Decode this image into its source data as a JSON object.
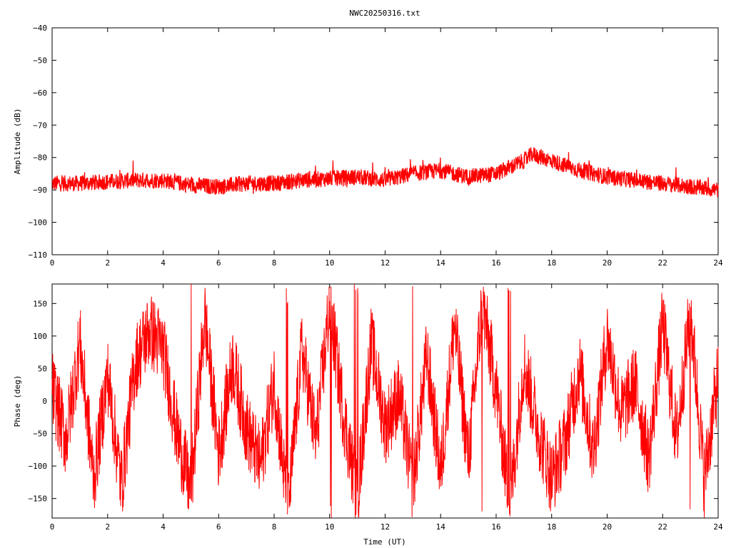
{
  "title": "NWC20250316.txt",
  "colors": {
    "trace": "#ff0000",
    "axis": "#000000",
    "background": "#ffffff"
  },
  "chart_data": [
    {
      "type": "line",
      "title": "",
      "xlabel": "",
      "ylabel": "Amplitude (dB)",
      "xlim": [
        0,
        24
      ],
      "ylim": [
        -110,
        -40
      ],
      "xticks": [
        "0",
        "2",
        "4",
        "6",
        "8",
        "10",
        "12",
        "14",
        "16",
        "18",
        "20",
        "22",
        "24"
      ],
      "yticks": [
        "−40",
        "−50",
        "−60",
        "−70",
        "−80",
        "−90",
        "−100",
        "−110"
      ],
      "grid": false,
      "series": [
        {
          "x": [
            0,
            1,
            2,
            3,
            4,
            5,
            6,
            7,
            8,
            9,
            10,
            11,
            12,
            13,
            14,
            15,
            16,
            17,
            17.3,
            18,
            19,
            20,
            21,
            22,
            23,
            24
          ],
          "y": [
            -88,
            -88,
            -87.5,
            -87,
            -87,
            -88.5,
            -89,
            -88,
            -88,
            -87,
            -86.5,
            -86,
            -87,
            -85,
            -84,
            -86,
            -85,
            -81,
            -79,
            -81,
            -84,
            -86,
            -87,
            -88,
            -89,
            -90
          ],
          "spread_db": 2.5
        }
      ]
    },
    {
      "type": "line",
      "title": "",
      "xlabel": "Time (UT)",
      "ylabel": "Phase (deg)",
      "xlim": [
        0,
        24
      ],
      "ylim": [
        -180,
        180
      ],
      "xticks": [
        "0",
        "2",
        "4",
        "6",
        "8",
        "10",
        "12",
        "14",
        "16",
        "18",
        "20",
        "22",
        "24"
      ],
      "yticks": [
        "150",
        "100",
        "50",
        "0",
        "−50",
        "−100",
        "−150"
      ],
      "grid": false,
      "series": [
        {
          "x": [
            0,
            0.5,
            1,
            1.5,
            2,
            2.5,
            3,
            3.5,
            4,
            4.5,
            5,
            5.5,
            6,
            6.5,
            7,
            7.5,
            8,
            8.5,
            9,
            9.5,
            10,
            10.5,
            11,
            11.5,
            12,
            12.5,
            13,
            13.5,
            14,
            14.5,
            15,
            15.5,
            16,
            16.5,
            17,
            17.5,
            18,
            18.5,
            19,
            19.5,
            20,
            20.5,
            21,
            21.5,
            22,
            22.5,
            23,
            23.5,
            24
          ],
          "y": [
            20,
            -60,
            90,
            -120,
            40,
            -130,
            60,
            110,
            80,
            -50,
            -140,
            130,
            -80,
            60,
            -40,
            -100,
            30,
            -170,
            80,
            -60,
            150,
            -20,
            -150,
            90,
            -40,
            10,
            -130,
            70,
            -110,
            120,
            -90,
            150,
            20,
            -160,
            60,
            -40,
            -120,
            -60,
            50,
            -80,
            100,
            -20,
            30,
            -90,
            120,
            -60,
            140,
            -120,
            40
          ],
          "wrap_deg": 180
        }
      ]
    }
  ]
}
